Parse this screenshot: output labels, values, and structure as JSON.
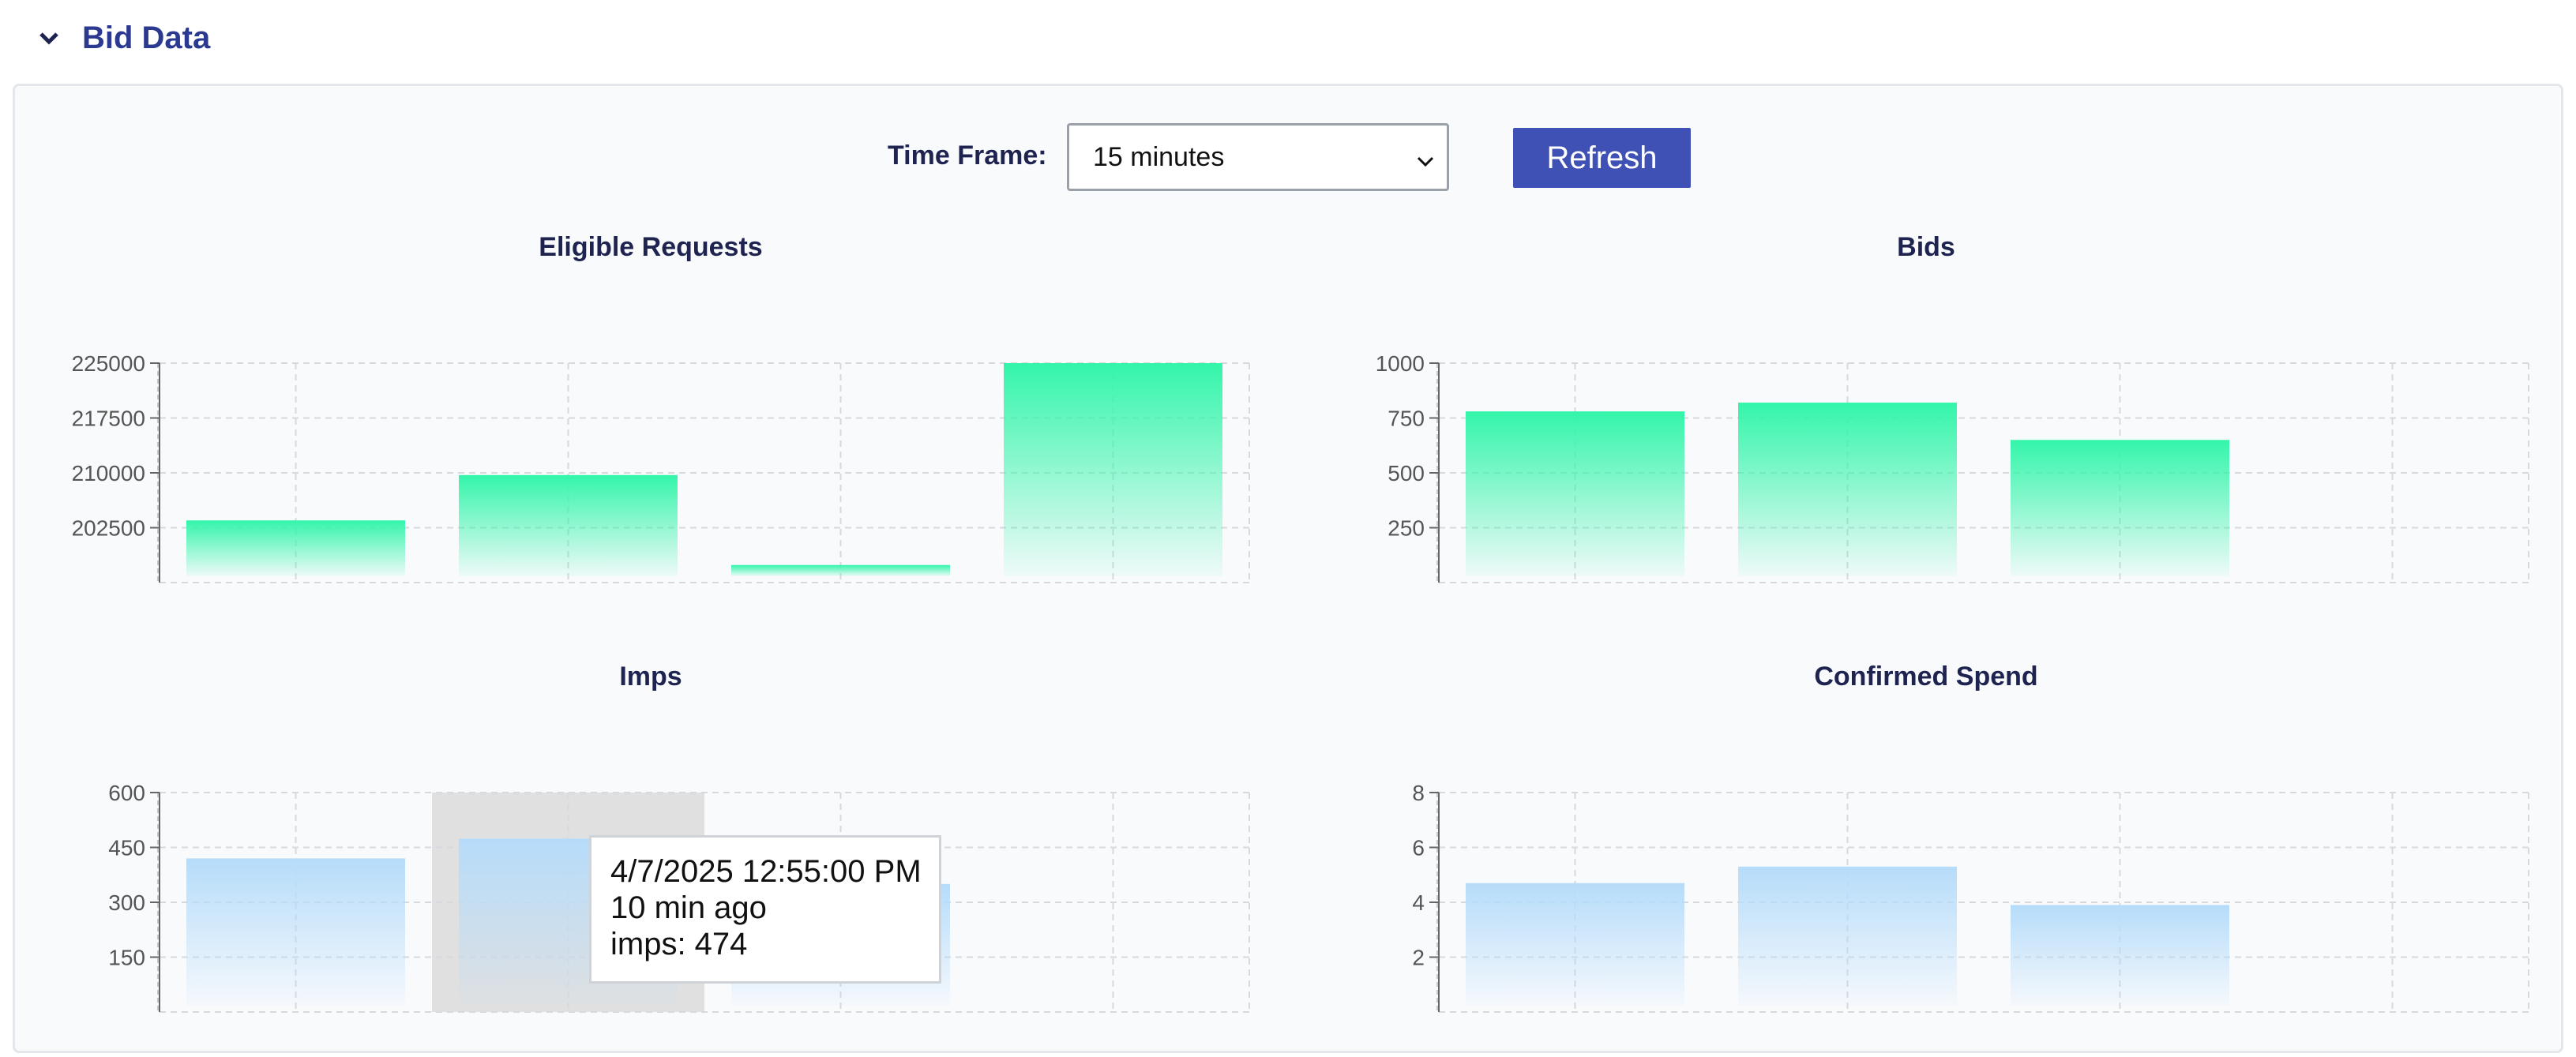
{
  "section": {
    "title": "Bid Data",
    "toggle_icon": "chevron-down-icon"
  },
  "controls": {
    "time_frame_label": "Time Frame:",
    "time_frame_value": "15 minutes",
    "refresh_label": "Refresh"
  },
  "colors": {
    "green": "#33f5aa",
    "blue": "#b6dcfa",
    "title": "#1e2350",
    "accent": "#3f51b5"
  },
  "chart_data": [
    {
      "type": "bar",
      "title": "Eligible Requests",
      "values": [
        203500,
        209700,
        197400,
        225000
      ],
      "yticks": [
        202500,
        210000,
        217500,
        225000
      ],
      "ylim": [
        195000,
        225000
      ],
      "grid": true,
      "color": "green"
    },
    {
      "type": "bar",
      "title": "Bids",
      "values": [
        780,
        820,
        650
      ],
      "yticks": [
        250,
        500,
        750,
        1000
      ],
      "ylim": [
        0,
        1000
      ],
      "grid": true,
      "color": "green"
    },
    {
      "type": "bar",
      "title": "Imps",
      "values": [
        420,
        474,
        350
      ],
      "yticks": [
        150,
        300,
        450,
        600
      ],
      "ylim": [
        0,
        600
      ],
      "grid": true,
      "color": "blue",
      "highlight_index": 1
    },
    {
      "type": "bar",
      "title": "Confirmed Spend",
      "values": [
        4.7,
        5.3,
        3.9
      ],
      "yticks": [
        2,
        4,
        6,
        8
      ],
      "ylim": [
        0,
        8
      ],
      "grid": true,
      "color": "blue"
    }
  ],
  "tooltip": {
    "date": "4/7/2025 12:55:00 PM",
    "ago": "10 min ago",
    "value": "imps: 474"
  }
}
